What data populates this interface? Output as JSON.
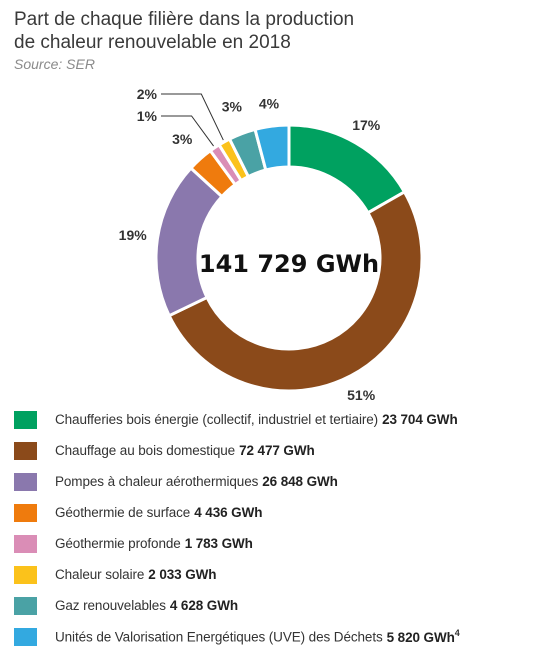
{
  "title_line1": "Part de chaque filière dans la production",
  "title_line2": "de chaleur renouvelable en 2018",
  "source": "Source: SER",
  "chart_data": {
    "type": "pie",
    "subtype": "donut",
    "center_label": "141 729 GWh",
    "total": 141729,
    "unit": "GWh",
    "series": [
      {
        "name": "Chaufferies bois énergie (collectif, industriel et tertiaire)",
        "value": 23704,
        "value_label": "23 704 GWh",
        "percent_label": "17%",
        "color": "#00a160"
      },
      {
        "name": "Chauffage au bois domestique",
        "value": 72477,
        "value_label": "72 477 GWh",
        "percent_label": "51%",
        "color": "#8b4a1a"
      },
      {
        "name": "Pompes à chaleur aérothermiques",
        "value": 26848,
        "value_label": "26 848 GWh",
        "percent_label": "19%",
        "color": "#8a78ad"
      },
      {
        "name": "Géothermie de surface",
        "value": 4436,
        "value_label": "4 436 GWh",
        "percent_label": "3%",
        "color": "#ef7b0d"
      },
      {
        "name": "Géothermie profonde",
        "value": 1783,
        "value_label": "1 783 GWh",
        "percent_label": "1%",
        "color": "#da8db6"
      },
      {
        "name": "Chaleur solaire",
        "value": 2033,
        "value_label": "2 033 GWh",
        "percent_label": "2%",
        "color": "#fbc21b"
      },
      {
        "name": "Gaz renouvelables",
        "value": 4628,
        "value_label": "4 628 GWh",
        "percent_label": "3%",
        "color": "#4aa2a5"
      },
      {
        "name": "Unités de Valorisation Energétiques (UVE) des Déchets",
        "value": 5820,
        "value_label": "5 820 GWh",
        "value_suffix": "4",
        "percent_label": "4%",
        "color": "#33a9e0"
      }
    ]
  }
}
